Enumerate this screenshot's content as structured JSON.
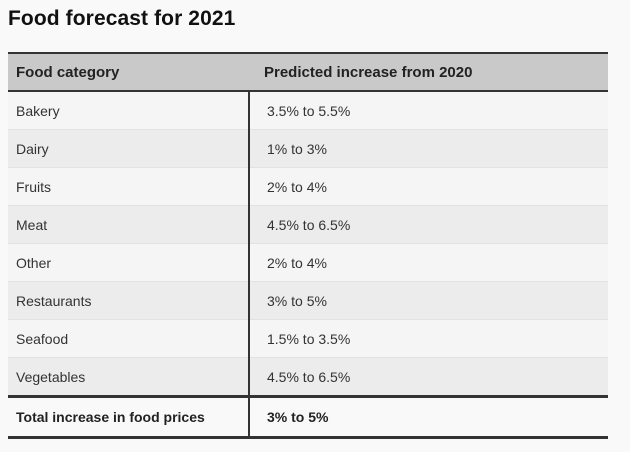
{
  "title": "Food forecast for 2021",
  "table": {
    "headers": {
      "category": "Food category",
      "increase": "Predicted increase from 2020"
    },
    "rows": [
      {
        "category": "Bakery",
        "increase": "3.5% to 5.5%"
      },
      {
        "category": "Dairy",
        "increase": "1% to 3%"
      },
      {
        "category": "Fruits",
        "increase": "2% to 4%"
      },
      {
        "category": "Meat",
        "increase": "4.5% to 6.5%"
      },
      {
        "category": "Other",
        "increase": "2% to 4%"
      },
      {
        "category": "Restaurants",
        "increase": "3% to 5%"
      },
      {
        "category": "Seafood",
        "increase": "1.5% to 3.5%"
      },
      {
        "category": "Vegetables",
        "increase": "4.5% to 6.5%"
      }
    ],
    "total": {
      "category": "Total increase in food prices",
      "increase": "3% to 5%"
    }
  },
  "colors": {
    "header_background": "#c9c9c9",
    "row_even": "#f5f5f5",
    "row_odd": "#ececec",
    "rule": "#333333"
  }
}
